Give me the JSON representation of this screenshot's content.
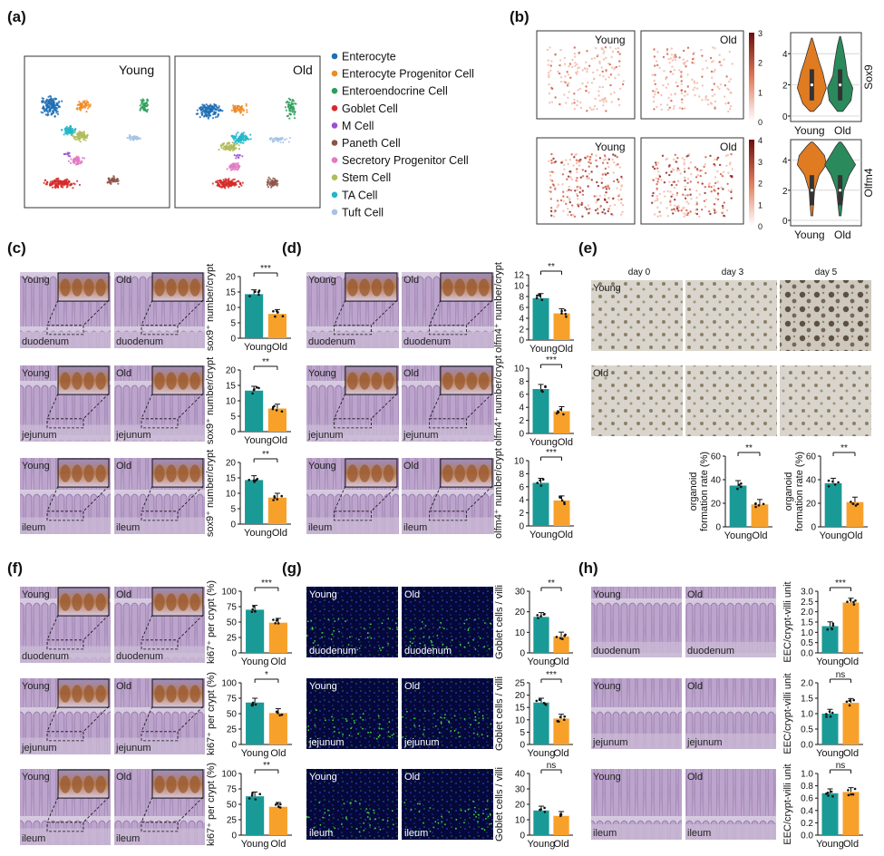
{
  "panels": {
    "a": "(a)",
    "b": "(b)",
    "c": "(c)",
    "d": "(d)",
    "e": "(e)",
    "f": "(f)",
    "g": "(g)",
    "h": "(h)"
  },
  "groups": {
    "young": "Young",
    "old": "Old",
    "young_old": "YoungOld"
  },
  "regions": {
    "duodenum": "duodenum",
    "jejunum": "jejunum",
    "ileum": "ileum"
  },
  "colors": {
    "young": "#1a9a96",
    "old": "#f7a12b",
    "violin_young": "#e07b22",
    "violin_old": "#2a8a5c"
  },
  "legend_a": [
    {
      "label": "Enterocyte",
      "color": "#1f6fb5"
    },
    {
      "label": "Enterocyte Progenitor Cell",
      "color": "#f08a24"
    },
    {
      "label": "Enteroendocrine Cell",
      "color": "#2e9e5b"
    },
    {
      "label": "Goblet Cell",
      "color": "#d62a2a"
    },
    {
      "label": "M Cell",
      "color": "#9a4fd0"
    },
    {
      "label": "Paneth Cell",
      "color": "#8c5546"
    },
    {
      "label": "Secretory Progenitor Cell",
      "color": "#e07ac3"
    },
    {
      "label": "Stem Cell",
      "color": "#b2bb5a"
    },
    {
      "label": "TA Cell",
      "color": "#22b6c9"
    },
    {
      "label": "Tuft Cell",
      "color": "#a6c3e6"
    }
  ],
  "panel_b": {
    "colorbar_top": [
      "3",
      "2",
      "1",
      "0"
    ],
    "colorbar_bottom": [
      "4",
      "3",
      "2",
      "1",
      "0"
    ],
    "violin_sox9": {
      "ylabel": "Sox9",
      "ticks": [
        "0",
        "2",
        "4"
      ]
    },
    "violin_olfm4": {
      "ylabel": "Olfm4",
      "ticks": [
        "0",
        "2",
        "4"
      ]
    }
  },
  "panel_e": {
    "days": [
      "day 0",
      "day 3",
      "day 5"
    ],
    "ylabel1": "organoid",
    "ylabel2": "formation rate (%)"
  },
  "sig": {
    "c": [
      "***",
      "**",
      "**"
    ],
    "d": [
      "**",
      "***",
      "***"
    ],
    "e": [
      "**",
      "**"
    ],
    "f": [
      "***",
      "*",
      "**"
    ],
    "g": [
      "**",
      "***",
      "ns"
    ],
    "h": [
      "***",
      "ns",
      "ns"
    ]
  },
  "ylabels": {
    "c": "sox9⁺ number/crypt",
    "d": "olfm4⁺ number/crypt",
    "f": "ki67⁺ per crypt (%)",
    "g": "Goblet cells / villi",
    "h": "EEC/crypt-villi unit"
  },
  "chart_data": [
    {
      "type": "bar",
      "panel": "c",
      "region": "duodenum",
      "categories": [
        "Young",
        "Old"
      ],
      "values": [
        14.3,
        7.9
      ],
      "ylim": [
        0,
        20
      ],
      "yticks": [
        "0",
        "5",
        "10",
        "15",
        "20"
      ],
      "sig": "***"
    },
    {
      "type": "bar",
      "panel": "c",
      "region": "jejunum",
      "categories": [
        "Young",
        "Old"
      ],
      "values": [
        13.3,
        7.5
      ],
      "ylim": [
        0,
        20
      ],
      "yticks": [
        "0",
        "5",
        "10",
        "15",
        "20"
      ],
      "sig": "**"
    },
    {
      "type": "bar",
      "panel": "c",
      "region": "ileum",
      "categories": [
        "Young",
        "Old"
      ],
      "values": [
        14.3,
        8.6
      ],
      "ylim": [
        0,
        20
      ],
      "yticks": [
        "0",
        "5",
        "10",
        "15",
        "20"
      ],
      "sig": "**"
    },
    {
      "type": "bar",
      "panel": "d",
      "region": "duodenum",
      "categories": [
        "Young",
        "Old"
      ],
      "values": [
        7.7,
        4.9
      ],
      "ylim": [
        0,
        12
      ],
      "yticks": [
        "0",
        "2",
        "4",
        "6",
        "8",
        "10",
        "12"
      ],
      "sig": "**"
    },
    {
      "type": "bar",
      "panel": "d",
      "region": "jejunum",
      "categories": [
        "Young",
        "Old"
      ],
      "values": [
        6.8,
        3.4
      ],
      "ylim": [
        0,
        10
      ],
      "yticks": [
        "0",
        "2",
        "4",
        "6",
        "8",
        "10"
      ],
      "sig": "***"
    },
    {
      "type": "bar",
      "panel": "d",
      "region": "ileum",
      "categories": [
        "Young",
        "Old"
      ],
      "values": [
        6.6,
        3.9
      ],
      "ylim": [
        0,
        10
      ],
      "yticks": [
        "0",
        "2",
        "4",
        "6",
        "8",
        "10"
      ],
      "sig": "***"
    },
    {
      "type": "bar",
      "panel": "e",
      "region": "",
      "categories": [
        "Young",
        "Old"
      ],
      "values": [
        35,
        19
      ],
      "ylim": [
        0,
        60
      ],
      "yticks": [
        "0",
        "20",
        "40",
        "60"
      ],
      "sig": "**"
    },
    {
      "type": "bar",
      "panel": "e",
      "region": "",
      "categories": [
        "Young",
        "Old"
      ],
      "values": [
        37,
        21
      ],
      "ylim": [
        0,
        60
      ],
      "yticks": [
        "0",
        "20",
        "40",
        "60"
      ],
      "sig": "**"
    },
    {
      "type": "bar",
      "panel": "f",
      "region": "duodenum",
      "categories": [
        "Young",
        "Old"
      ],
      "values": [
        70,
        49
      ],
      "ylim": [
        0,
        100
      ],
      "yticks": [
        "0",
        "25",
        "50",
        "75",
        "100"
      ],
      "sig": "***"
    },
    {
      "type": "bar",
      "panel": "f",
      "region": "jejunum",
      "categories": [
        "Young",
        "Old"
      ],
      "values": [
        68,
        51
      ],
      "ylim": [
        0,
        100
      ],
      "yticks": [
        "0",
        "25",
        "50",
        "75",
        "100"
      ],
      "sig": "*"
    },
    {
      "type": "bar",
      "panel": "f",
      "region": "ileum",
      "categories": [
        "Young",
        "Old"
      ],
      "values": [
        63,
        46
      ],
      "ylim": [
        0,
        100
      ],
      "yticks": [
        "0",
        "25",
        "50",
        "75",
        "100"
      ],
      "sig": "**"
    },
    {
      "type": "bar",
      "panel": "g",
      "region": "duodenum",
      "categories": [
        "Young",
        "Old"
      ],
      "values": [
        17.5,
        8
      ],
      "ylim": [
        0,
        30
      ],
      "yticks": [
        "0",
        "10",
        "20",
        "30"
      ],
      "sig": "**"
    },
    {
      "type": "bar",
      "panel": "g",
      "region": "jejunum",
      "categories": [
        "Young",
        "Old"
      ],
      "values": [
        17,
        10.5
      ],
      "ylim": [
        0,
        25
      ],
      "yticks": [
        "0",
        "5",
        "10",
        "15",
        "20",
        "25"
      ],
      "sig": "***"
    },
    {
      "type": "bar",
      "panel": "g",
      "region": "ileum",
      "categories": [
        "Young",
        "Old"
      ],
      "values": [
        16,
        12.5
      ],
      "ylim": [
        0,
        40
      ],
      "yticks": [
        "0",
        "10",
        "20",
        "30",
        "40"
      ],
      "sig": "ns"
    },
    {
      "type": "bar",
      "panel": "h",
      "region": "duodenum",
      "categories": [
        "Young",
        "Old"
      ],
      "values": [
        1.3,
        2.45
      ],
      "ylim": [
        0,
        3.0
      ],
      "yticks": [
        "0.0",
        "0.5",
        "1.0",
        "1.5",
        "2.0",
        "2.5",
        "3.0"
      ],
      "sig": "***"
    },
    {
      "type": "bar",
      "panel": "h",
      "region": "jejunum",
      "categories": [
        "Young",
        "Old"
      ],
      "values": [
        1.0,
        1.35
      ],
      "ylim": [
        0,
        2.0
      ],
      "yticks": [
        "0.0",
        "0.5",
        "1.0",
        "1.5",
        "2.0"
      ],
      "sig": "ns"
    },
    {
      "type": "bar",
      "panel": "h",
      "region": "ileum",
      "categories": [
        "Young",
        "Old"
      ],
      "values": [
        0.68,
        0.7
      ],
      "ylim": [
        0,
        1.0
      ],
      "yticks": [
        "0.0",
        "0.2",
        "0.4",
        "0.6",
        "0.8",
        "1.0"
      ],
      "sig": "ns"
    }
  ]
}
